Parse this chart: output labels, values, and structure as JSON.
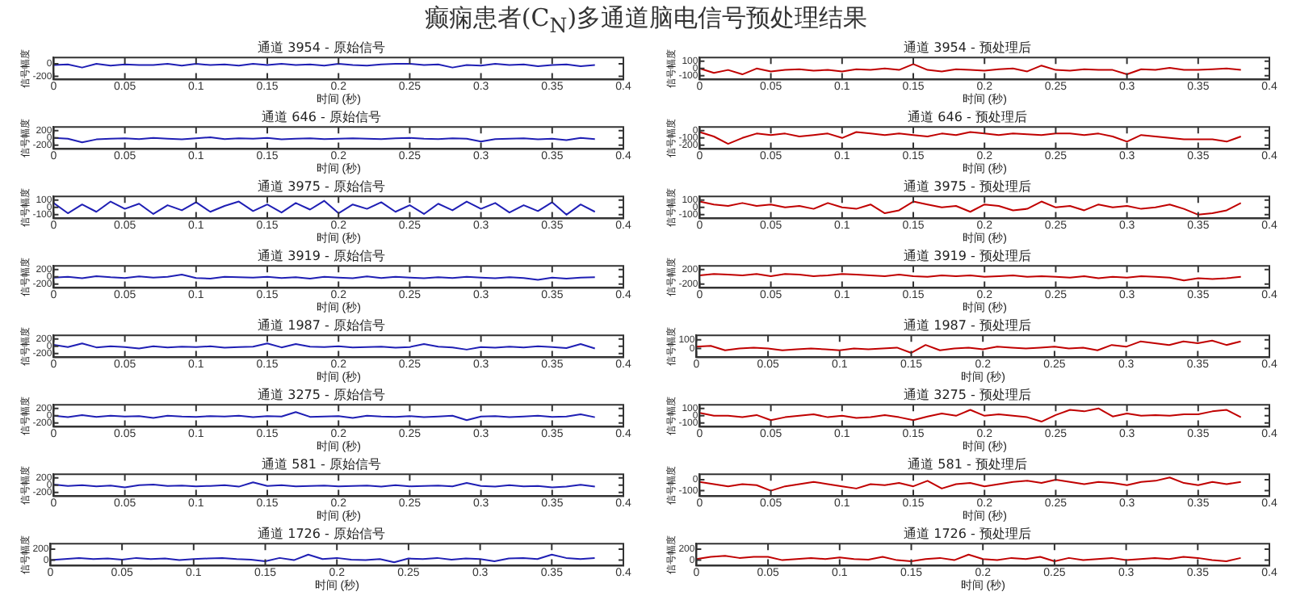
{
  "chart_data": [
    {
      "type": "line",
      "title": "通道 3954 - 原始信号",
      "xlabel": "时间 (秒)",
      "ylabel": "信号幅度",
      "annotations": [
        "癫痫患者(C$_{N}$)多通道脑电信号预处理结果"
      ],
      "xlim": [
        0,
        0.4
      ],
      "xticks": [
        0,
        0.05,
        0.1,
        0.15,
        0.2,
        0.25,
        0.3,
        0.35,
        0.4
      ],
      "ylim": [
        -250,
        100
      ],
      "yticks": [
        -200,
        0
      ],
      "x": [
        0,
        0.01,
        0.02,
        0.03,
        0.04,
        0.05,
        0.06,
        0.07,
        0.08,
        0.09,
        0.1,
        0.11,
        0.12,
        0.13,
        0.14,
        0.15,
        0.16,
        0.17,
        0.18,
        0.19,
        0.2,
        0.21,
        0.22,
        0.23,
        0.24,
        0.25,
        0.26,
        0.27,
        0.28,
        0.29,
        0.3,
        0.31,
        0.32,
        0.33,
        0.34,
        0.35,
        0.36,
        0.37,
        0.38
      ],
      "series": [
        {
          "color": "#1f1fb4",
          "values": [
            -20,
            -10,
            -60,
            0,
            -30,
            -10,
            -20,
            -20,
            0,
            -30,
            0,
            -20,
            -10,
            -30,
            0,
            -20,
            0,
            -20,
            -10,
            -30,
            0,
            -20,
            -30,
            -10,
            0,
            0,
            -20,
            -10,
            -60,
            -20,
            -30,
            0,
            -20,
            -10,
            -40,
            -20,
            -10,
            -40,
            -20
          ]
        }
      ]
    },
    {
      "type": "line",
      "title": "通道 3954 - 预处理后",
      "xlabel": "时间 (秒)",
      "ylabel": "信号幅度",
      "xlim": [
        0,
        0.4
      ],
      "xticks": [
        0,
        0.05,
        0.1,
        0.15,
        0.2,
        0.25,
        0.3,
        0.35,
        0.4
      ],
      "ylim": [
        -150,
        150
      ],
      "yticks": [
        -100,
        0,
        100
      ],
      "x": [
        0,
        0.01,
        0.02,
        0.03,
        0.04,
        0.05,
        0.06,
        0.07,
        0.08,
        0.09,
        0.1,
        0.11,
        0.12,
        0.13,
        0.14,
        0.15,
        0.16,
        0.17,
        0.18,
        0.19,
        0.2,
        0.21,
        0.22,
        0.23,
        0.24,
        0.25,
        0.26,
        0.27,
        0.28,
        0.29,
        0.3,
        0.31,
        0.32,
        0.33,
        0.34,
        0.35,
        0.36,
        0.37,
        0.38
      ],
      "series": [
        {
          "color": "#c00000",
          "values": [
            0,
            -60,
            -20,
            -80,
            0,
            -40,
            -20,
            -10,
            -30,
            -20,
            -40,
            -10,
            -20,
            0,
            -20,
            60,
            -20,
            -40,
            -10,
            -20,
            -30,
            -10,
            0,
            -40,
            40,
            -20,
            -30,
            -10,
            -20,
            -20,
            -80,
            -10,
            -20,
            10,
            -20,
            -20,
            -10,
            0,
            -20
          ]
        }
      ]
    },
    {
      "type": "line",
      "title": "通道 646 - 原始信号",
      "xlabel": "时间 (秒)",
      "ylabel": "信号幅度",
      "xlim": [
        0,
        0.4
      ],
      "xticks": [
        0,
        0.05,
        0.1,
        0.15,
        0.2,
        0.25,
        0.3,
        0.35,
        0.4
      ],
      "ylim": [
        -300,
        300
      ],
      "yticks": [
        -200,
        0,
        200
      ],
      "x": [
        0,
        0.01,
        0.02,
        0.03,
        0.04,
        0.05,
        0.06,
        0.07,
        0.08,
        0.09,
        0.1,
        0.11,
        0.12,
        0.13,
        0.14,
        0.15,
        0.16,
        0.17,
        0.18,
        0.19,
        0.2,
        0.21,
        0.22,
        0.23,
        0.24,
        0.25,
        0.26,
        0.27,
        0.28,
        0.29,
        0.3,
        0.31,
        0.32,
        0.33,
        0.34,
        0.35,
        0.36,
        0.37,
        0.38
      ],
      "series": [
        {
          "color": "#1f1fb4",
          "values": [
            0,
            -20,
            -120,
            -40,
            -20,
            -10,
            -30,
            0,
            -20,
            -40,
            -10,
            20,
            -30,
            -10,
            -20,
            0,
            -40,
            -20,
            -10,
            -30,
            -20,
            -10,
            -20,
            -30,
            -10,
            0,
            -20,
            -30,
            -10,
            -20,
            -100,
            -30,
            -20,
            -10,
            -40,
            -20,
            -60,
            0,
            -30
          ]
        }
      ]
    },
    {
      "type": "line",
      "title": "通道 646 - 预处理后",
      "xlabel": "时间 (秒)",
      "ylabel": "信号幅度",
      "xlim": [
        0,
        0.4
      ],
      "xticks": [
        0,
        0.05,
        0.1,
        0.15,
        0.2,
        0.25,
        0.3,
        0.35,
        0.4
      ],
      "ylim": [
        -250,
        50
      ],
      "yticks": [
        -200,
        -100,
        0
      ],
      "x": [
        0,
        0.01,
        0.02,
        0.03,
        0.04,
        0.05,
        0.06,
        0.07,
        0.08,
        0.09,
        0.1,
        0.11,
        0.12,
        0.13,
        0.14,
        0.15,
        0.16,
        0.17,
        0.18,
        0.19,
        0.2,
        0.21,
        0.22,
        0.23,
        0.24,
        0.25,
        0.26,
        0.27,
        0.28,
        0.29,
        0.3,
        0.31,
        0.32,
        0.33,
        0.34,
        0.35,
        0.36,
        0.37,
        0.38
      ],
      "series": [
        {
          "color": "#c00000",
          "values": [
            -20,
            -80,
            -180,
            -100,
            -40,
            -60,
            -40,
            -80,
            -60,
            -40,
            -100,
            -20,
            -40,
            -60,
            -40,
            -60,
            -80,
            -40,
            -60,
            -20,
            -40,
            -60,
            -40,
            -50,
            -60,
            -40,
            -40,
            -60,
            -40,
            -80,
            -150,
            -60,
            -80,
            -100,
            -120,
            -120,
            -120,
            -150,
            -80
          ]
        }
      ]
    },
    {
      "type": "line",
      "title": "通道 3975 - 原始信号",
      "xlabel": "时间 (秒)",
      "ylabel": "信号幅度",
      "xlim": [
        0,
        0.4
      ],
      "xticks": [
        0,
        0.05,
        0.1,
        0.15,
        0.2,
        0.25,
        0.3,
        0.35,
        0.4
      ],
      "ylim": [
        -150,
        150
      ],
      "yticks": [
        -100,
        0,
        100
      ],
      "x": [
        0,
        0.01,
        0.02,
        0.03,
        0.04,
        0.05,
        0.06,
        0.07,
        0.08,
        0.09,
        0.1,
        0.11,
        0.12,
        0.13,
        0.14,
        0.15,
        0.16,
        0.17,
        0.18,
        0.19,
        0.2,
        0.21,
        0.22,
        0.23,
        0.24,
        0.25,
        0.26,
        0.27,
        0.28,
        0.29,
        0.3,
        0.31,
        0.32,
        0.33,
        0.34,
        0.35,
        0.36,
        0.37,
        0.38
      ],
      "series": [
        {
          "color": "#1f1fb4",
          "values": [
            60,
            -80,
            40,
            -60,
            80,
            -20,
            50,
            -90,
            30,
            -40,
            70,
            -60,
            20,
            80,
            -50,
            40,
            -70,
            60,
            -30,
            90,
            -80,
            40,
            -20,
            70,
            -60,
            30,
            -90,
            50,
            -40,
            80,
            -20,
            60,
            -70,
            30,
            -50,
            70,
            -100,
            40,
            -60
          ]
        }
      ]
    },
    {
      "type": "line",
      "title": "通道 3975 - 预处理后",
      "xlabel": "时间 (秒)",
      "ylabel": "信号幅度",
      "xlim": [
        0,
        0.4
      ],
      "xticks": [
        0,
        0.05,
        0.1,
        0.15,
        0.2,
        0.25,
        0.3,
        0.35,
        0.4
      ],
      "ylim": [
        -150,
        150
      ],
      "yticks": [
        -100,
        0,
        100
      ],
      "x": [
        0,
        0.01,
        0.02,
        0.03,
        0.04,
        0.05,
        0.06,
        0.07,
        0.08,
        0.09,
        0.1,
        0.11,
        0.12,
        0.13,
        0.14,
        0.15,
        0.16,
        0.17,
        0.18,
        0.19,
        0.2,
        0.21,
        0.22,
        0.23,
        0.24,
        0.25,
        0.26,
        0.27,
        0.28,
        0.29,
        0.3,
        0.31,
        0.32,
        0.33,
        0.34,
        0.35,
        0.36,
        0.37,
        0.38
      ],
      "series": [
        {
          "color": "#c00000",
          "values": [
            80,
            40,
            20,
            60,
            20,
            40,
            0,
            20,
            -20,
            60,
            0,
            -20,
            40,
            -80,
            -40,
            80,
            40,
            0,
            20,
            -60,
            40,
            20,
            -40,
            -20,
            80,
            0,
            20,
            -40,
            40,
            0,
            20,
            -20,
            0,
            40,
            -20,
            -100,
            -80,
            -40,
            60
          ]
        }
      ]
    },
    {
      "type": "line",
      "title": "通道 3919 - 原始信号",
      "xlabel": "时间 (秒)",
      "ylabel": "信号幅度",
      "xlim": [
        0,
        0.4
      ],
      "xticks": [
        0,
        0.05,
        0.1,
        0.15,
        0.2,
        0.25,
        0.3,
        0.35,
        0.4
      ],
      "ylim": [
        -300,
        300
      ],
      "yticks": [
        -200,
        0,
        200
      ],
      "x": [
        0,
        0.01,
        0.02,
        0.03,
        0.04,
        0.05,
        0.06,
        0.07,
        0.08,
        0.09,
        0.1,
        0.11,
        0.12,
        0.13,
        0.14,
        0.15,
        0.16,
        0.17,
        0.18,
        0.19,
        0.2,
        0.21,
        0.22,
        0.23,
        0.24,
        0.25,
        0.26,
        0.27,
        0.28,
        0.29,
        0.3,
        0.31,
        0.32,
        0.33,
        0.34,
        0.35,
        0.36,
        0.37,
        0.38
      ],
      "series": [
        {
          "color": "#1f1fb4",
          "values": [
            -20,
            0,
            -40,
            20,
            -10,
            -30,
            10,
            -20,
            0,
            60,
            -30,
            -50,
            0,
            -10,
            -20,
            0,
            -30,
            -10,
            -50,
            0,
            -20,
            -40,
            10,
            -30,
            0,
            -20,
            -40,
            -10,
            -30,
            0,
            -20,
            -40,
            -10,
            -30,
            -80,
            -20,
            -50,
            -20,
            -10
          ]
        }
      ]
    },
    {
      "type": "line",
      "title": "通道 3919 - 预处理后",
      "xlabel": "时间 (秒)",
      "ylabel": "信号幅度",
      "xlim": [
        0,
        0.4
      ],
      "xticks": [
        0,
        0.05,
        0.1,
        0.15,
        0.2,
        0.25,
        0.3,
        0.35,
        0.4
      ],
      "ylim": [
        -300,
        300
      ],
      "yticks": [
        -200,
        200
      ],
      "x": [
        0,
        0.01,
        0.02,
        0.03,
        0.04,
        0.05,
        0.06,
        0.07,
        0.08,
        0.09,
        0.1,
        0.11,
        0.12,
        0.13,
        0.14,
        0.15,
        0.16,
        0.17,
        0.18,
        0.19,
        0.2,
        0.21,
        0.22,
        0.23,
        0.24,
        0.25,
        0.26,
        0.27,
        0.28,
        0.29,
        0.3,
        0.31,
        0.32,
        0.33,
        0.34,
        0.35,
        0.36,
        0.37,
        0.38
      ],
      "series": [
        {
          "color": "#c00000",
          "values": [
            40,
            80,
            60,
            40,
            80,
            20,
            80,
            60,
            20,
            40,
            80,
            60,
            40,
            20,
            60,
            20,
            0,
            40,
            20,
            40,
            0,
            20,
            40,
            0,
            20,
            0,
            -20,
            20,
            -40,
            0,
            -20,
            20,
            0,
            -20,
            -100,
            -40,
            -60,
            -40,
            0
          ]
        }
      ]
    },
    {
      "type": "line",
      "title": "通道 1987 - 原始信号",
      "xlabel": "时间 (秒)",
      "ylabel": "信号幅度",
      "xlim": [
        0,
        0.4
      ],
      "xticks": [
        0,
        0.05,
        0.1,
        0.15,
        0.2,
        0.25,
        0.3,
        0.35,
        0.4
      ],
      "ylim": [
        -300,
        300
      ],
      "yticks": [
        -200,
        0,
        200
      ],
      "x": [
        0,
        0.01,
        0.02,
        0.03,
        0.04,
        0.05,
        0.06,
        0.07,
        0.08,
        0.09,
        0.1,
        0.11,
        0.12,
        0.13,
        0.14,
        0.15,
        0.16,
        0.17,
        0.18,
        0.19,
        0.2,
        0.21,
        0.22,
        0.23,
        0.24,
        0.25,
        0.26,
        0.27,
        0.28,
        0.29,
        0.3,
        0.31,
        0.32,
        0.33,
        0.34,
        0.35,
        0.36,
        0.37,
        0.38
      ],
      "series": [
        {
          "color": "#1f1fb4",
          "values": [
            40,
            -20,
            80,
            -30,
            0,
            -20,
            -60,
            0,
            -30,
            -10,
            -20,
            0,
            -40,
            -20,
            -10,
            80,
            -30,
            60,
            -10,
            -20,
            0,
            -30,
            -20,
            -10,
            -40,
            -20,
            60,
            -10,
            -30,
            -90,
            -20,
            -40,
            -10,
            -30,
            0,
            -20,
            -50,
            60,
            -60
          ]
        }
      ]
    },
    {
      "type": "line",
      "title": "通道 1987 - 预处理后",
      "xlabel": "时间 (秒)",
      "ylabel": "信号幅度",
      "xlim": [
        0,
        0.4
      ],
      "xticks": [
        0,
        0.05,
        0.1,
        0.15,
        0.2,
        0.25,
        0.3,
        0.35,
        0.4
      ],
      "ylim": [
        -100,
        150
      ],
      "yticks": [
        0,
        100
      ],
      "x": [
        0,
        0.01,
        0.02,
        0.03,
        0.04,
        0.05,
        0.06,
        0.07,
        0.08,
        0.09,
        0.1,
        0.11,
        0.12,
        0.13,
        0.14,
        0.15,
        0.16,
        0.17,
        0.18,
        0.19,
        0.2,
        0.21,
        0.22,
        0.23,
        0.24,
        0.25,
        0.26,
        0.27,
        0.28,
        0.29,
        0.3,
        0.31,
        0.32,
        0.33,
        0.34,
        0.35,
        0.36,
        0.37,
        0.38
      ],
      "series": [
        {
          "color": "#c00000",
          "values": [
            20,
            30,
            -20,
            0,
            10,
            0,
            -20,
            -10,
            0,
            -10,
            -20,
            0,
            -10,
            0,
            10,
            -50,
            40,
            -20,
            0,
            10,
            -10,
            20,
            10,
            0,
            10,
            20,
            0,
            10,
            -20,
            40,
            20,
            80,
            60,
            40,
            80,
            60,
            90,
            40,
            80
          ]
        }
      ]
    },
    {
      "type": "line",
      "title": "通道 3275 - 原始信号",
      "xlabel": "时间 (秒)",
      "ylabel": "信号幅度",
      "xlim": [
        0,
        0.4
      ],
      "xticks": [
        0,
        0.05,
        0.1,
        0.15,
        0.2,
        0.25,
        0.3,
        0.35,
        0.4
      ],
      "ylim": [
        -300,
        300
      ],
      "yticks": [
        -200,
        0,
        200
      ],
      "x": [
        0,
        0.01,
        0.02,
        0.03,
        0.04,
        0.05,
        0.06,
        0.07,
        0.08,
        0.09,
        0.1,
        0.11,
        0.12,
        0.13,
        0.14,
        0.15,
        0.16,
        0.17,
        0.18,
        0.19,
        0.2,
        0.21,
        0.22,
        0.23,
        0.24,
        0.25,
        0.26,
        0.27,
        0.28,
        0.29,
        0.3,
        0.31,
        0.32,
        0.33,
        0.34,
        0.35,
        0.36,
        0.37,
        0.38
      ],
      "series": [
        {
          "color": "#1f1fb4",
          "values": [
            0,
            -40,
            20,
            -30,
            0,
            -20,
            -10,
            -60,
            0,
            -20,
            -30,
            -10,
            -20,
            0,
            -40,
            -10,
            -20,
            100,
            -30,
            -20,
            -10,
            -60,
            0,
            -20,
            -30,
            -10,
            -40,
            -20,
            0,
            -120,
            -20,
            -10,
            -40,
            -20,
            0,
            -30,
            -20,
            40,
            -40
          ]
        }
      ]
    },
    {
      "type": "line",
      "title": "通道 3275 - 预处理后",
      "xlabel": "时间 (秒)",
      "ylabel": "信号幅度",
      "xlim": [
        0,
        0.4
      ],
      "xticks": [
        0,
        0.05,
        0.1,
        0.15,
        0.2,
        0.25,
        0.3,
        0.35,
        0.4
      ],
      "ylim": [
        -150,
        150
      ],
      "yticks": [
        -100,
        0,
        100
      ],
      "x": [
        0,
        0.01,
        0.02,
        0.03,
        0.04,
        0.05,
        0.06,
        0.07,
        0.08,
        0.09,
        0.1,
        0.11,
        0.12,
        0.13,
        0.14,
        0.15,
        0.16,
        0.17,
        0.18,
        0.19,
        0.2,
        0.21,
        0.22,
        0.23,
        0.24,
        0.25,
        0.26,
        0.27,
        0.28,
        0.29,
        0.3,
        0.31,
        0.32,
        0.33,
        0.34,
        0.35,
        0.36,
        0.37,
        0.38
      ],
      "series": [
        {
          "color": "#c00000",
          "values": [
            40,
            0,
            0,
            -20,
            10,
            -60,
            -20,
            0,
            20,
            -20,
            0,
            -30,
            -20,
            10,
            -20,
            -60,
            -10,
            30,
            0,
            80,
            0,
            20,
            0,
            -20,
            -80,
            10,
            80,
            60,
            100,
            -10,
            30,
            0,
            10,
            0,
            20,
            20,
            60,
            80,
            -20
          ]
        }
      ]
    },
    {
      "type": "line",
      "title": "通道 581 - 原始信号",
      "xlabel": "时间 (秒)",
      "ylabel": "信号幅度",
      "xlim": [
        0,
        0.4
      ],
      "xticks": [
        0,
        0.05,
        0.1,
        0.15,
        0.2,
        0.25,
        0.3,
        0.35,
        0.4
      ],
      "ylim": [
        -300,
        300
      ],
      "yticks": [
        -200,
        0,
        200
      ],
      "x": [
        0,
        0.01,
        0.02,
        0.03,
        0.04,
        0.05,
        0.06,
        0.07,
        0.08,
        0.09,
        0.1,
        0.11,
        0.12,
        0.13,
        0.14,
        0.15,
        0.16,
        0.17,
        0.18,
        0.19,
        0.2,
        0.21,
        0.22,
        0.23,
        0.24,
        0.25,
        0.26,
        0.27,
        0.28,
        0.29,
        0.3,
        0.31,
        0.32,
        0.33,
        0.34,
        0.35,
        0.36,
        0.37,
        0.38
      ],
      "series": [
        {
          "color": "#1f1fb4",
          "values": [
            20,
            -20,
            0,
            -30,
            -10,
            -60,
            0,
            20,
            -20,
            -10,
            -30,
            -20,
            0,
            -40,
            80,
            -20,
            0,
            -30,
            -20,
            -10,
            -30,
            -20,
            -10,
            -40,
            0,
            -30,
            -20,
            -10,
            -30,
            60,
            -20,
            -40,
            0,
            -30,
            -20,
            -60,
            -40,
            10,
            -40
          ]
        }
      ]
    },
    {
      "type": "line",
      "title": "通道 581 - 预处理后",
      "xlabel": "时间 (秒)",
      "ylabel": "信号幅度",
      "xlim": [
        0,
        0.4
      ],
      "xticks": [
        0,
        0.05,
        0.1,
        0.15,
        0.2,
        0.25,
        0.3,
        0.35,
        0.4
      ],
      "ylim": [
        -150,
        50
      ],
      "yticks": [
        -100,
        0
      ],
      "x": [
        0,
        0.01,
        0.02,
        0.03,
        0.04,
        0.05,
        0.06,
        0.07,
        0.08,
        0.09,
        0.1,
        0.11,
        0.12,
        0.13,
        0.14,
        0.15,
        0.16,
        0.17,
        0.18,
        0.19,
        0.2,
        0.21,
        0.22,
        0.23,
        0.24,
        0.25,
        0.26,
        0.27,
        0.28,
        0.29,
        0.3,
        0.31,
        0.32,
        0.33,
        0.34,
        0.35,
        0.36,
        0.37,
        0.38
      ],
      "series": [
        {
          "color": "#c00000",
          "values": [
            -20,
            -40,
            -60,
            -40,
            -50,
            -100,
            -60,
            -40,
            -20,
            -40,
            -60,
            -80,
            -40,
            -50,
            -30,
            -60,
            -10,
            -80,
            -40,
            -30,
            -60,
            -40,
            -20,
            -10,
            -30,
            0,
            -20,
            -40,
            -20,
            -30,
            -50,
            -20,
            -10,
            20,
            -30,
            -50,
            -20,
            -40,
            -20
          ]
        }
      ]
    },
    {
      "type": "line",
      "title": "通道 1726 - 原始信号",
      "xlabel": "时间 (秒)",
      "ylabel": "信号幅度",
      "xlim": [
        0,
        0.4
      ],
      "xticks": [
        0,
        0.05,
        0.1,
        0.15,
        0.2,
        0.25,
        0.3,
        0.35,
        0.4
      ],
      "ylim": [
        -100,
        300
      ],
      "yticks": [
        0,
        200
      ],
      "x": [
        0,
        0.01,
        0.02,
        0.03,
        0.04,
        0.05,
        0.06,
        0.07,
        0.08,
        0.09,
        0.1,
        0.11,
        0.12,
        0.13,
        0.14,
        0.15,
        0.16,
        0.17,
        0.18,
        0.19,
        0.2,
        0.21,
        0.22,
        0.23,
        0.24,
        0.25,
        0.26,
        0.27,
        0.28,
        0.29,
        0.3,
        0.31,
        0.32,
        0.33,
        0.34,
        0.35,
        0.36,
        0.37,
        0.38
      ],
      "series": [
        {
          "color": "#1f1fb4",
          "values": [
            0,
            20,
            40,
            20,
            30,
            10,
            40,
            20,
            30,
            0,
            20,
            30,
            40,
            20,
            10,
            -20,
            40,
            0,
            100,
            20,
            40,
            10,
            0,
            20,
            -40,
            30,
            20,
            40,
            10,
            30,
            20,
            -20,
            30,
            40,
            20,
            100,
            40,
            20,
            40
          ]
        }
      ]
    },
    {
      "type": "line",
      "title": "通道 1726 - 预处理后",
      "xlabel": "时间 (秒)",
      "ylabel": "信号幅度",
      "xlim": [
        0,
        0.4
      ],
      "xticks": [
        0,
        0.05,
        0.1,
        0.15,
        0.2,
        0.25,
        0.3,
        0.35,
        0.4
      ],
      "ylim": [
        -100,
        300
      ],
      "yticks": [
        0,
        200
      ],
      "x": [
        0,
        0.01,
        0.02,
        0.03,
        0.04,
        0.05,
        0.06,
        0.07,
        0.08,
        0.09,
        0.1,
        0.11,
        0.12,
        0.13,
        0.14,
        0.15,
        0.16,
        0.17,
        0.18,
        0.19,
        0.2,
        0.21,
        0.22,
        0.23,
        0.24,
        0.25,
        0.26,
        0.27,
        0.28,
        0.29,
        0.3,
        0.31,
        0.32,
        0.33,
        0.34,
        0.35,
        0.36,
        0.37,
        0.38
      ],
      "series": [
        {
          "color": "#c00000",
          "values": [
            20,
            60,
            80,
            40,
            60,
            60,
            0,
            20,
            40,
            20,
            50,
            20,
            10,
            60,
            0,
            -20,
            20,
            40,
            0,
            100,
            20,
            0,
            40,
            20,
            60,
            -20,
            40,
            0,
            20,
            40,
            0,
            20,
            40,
            20,
            60,
            40,
            0,
            -20,
            40
          ]
        }
      ]
    }
  ]
}
